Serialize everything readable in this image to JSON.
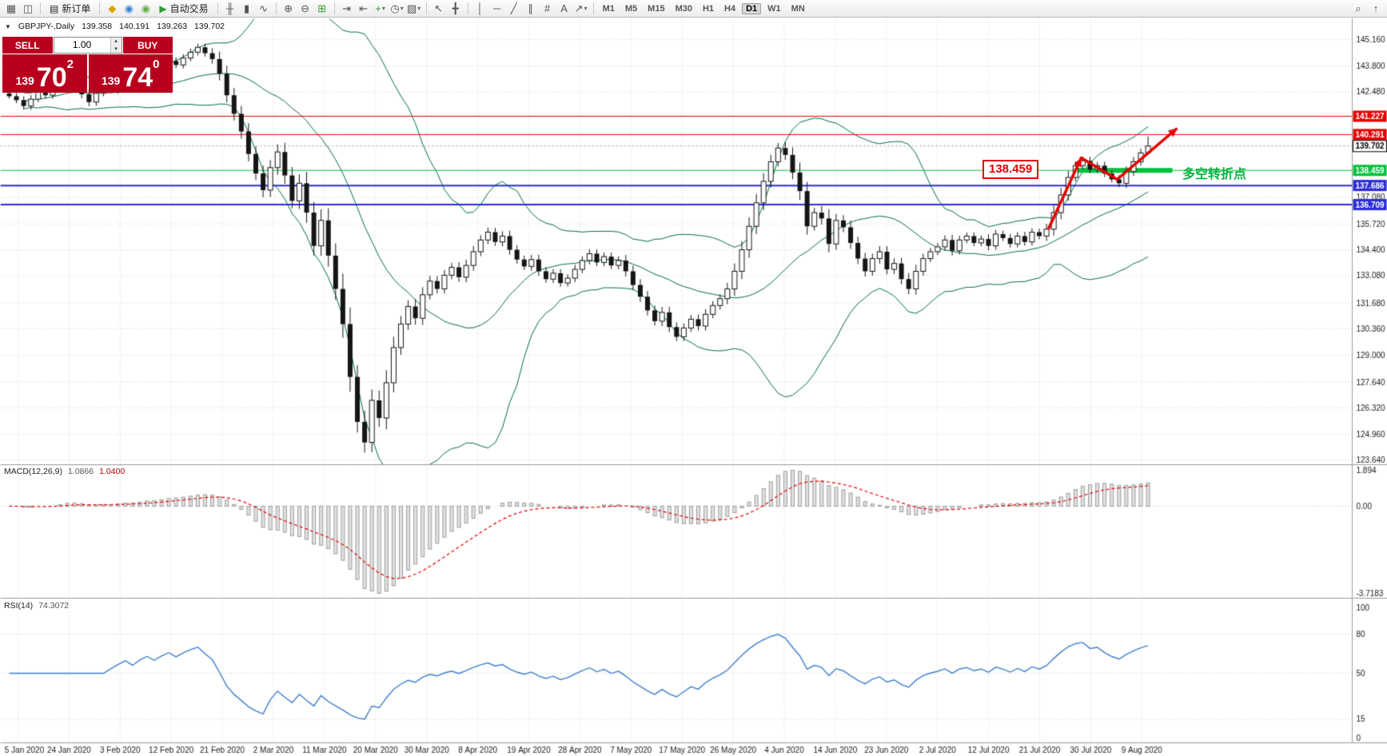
{
  "toolbar": {
    "items": [
      {
        "type": "icon",
        "name": "chart-window-icon",
        "glyph": "▦"
      },
      {
        "type": "icon",
        "name": "new-chart-icon",
        "glyph": "◫"
      },
      {
        "type": "sep"
      },
      {
        "type": "button",
        "name": "new-order-button",
        "glyph": "▤",
        "label": "新订单"
      },
      {
        "type": "sep"
      },
      {
        "type": "icon",
        "name": "metaeditor-icon",
        "glyph": "◆",
        "color": "#d9a400"
      },
      {
        "type": "icon",
        "name": "market-icon",
        "glyph": "◉",
        "color": "#3d7fd0"
      },
      {
        "type": "icon",
        "name": "community-icon",
        "glyph": "◉",
        "color": "#6aa84f"
      },
      {
        "type": "button",
        "name": "autotrading-button",
        "glyph": "▶",
        "label": "自动交易",
        "color": "#2f9e2f"
      },
      {
        "type": "sep"
      },
      {
        "type": "icon",
        "name": "bar-chart-type-icon",
        "glyph": "╫"
      },
      {
        "type": "icon",
        "name": "candlestick-chart-type-icon",
        "glyph": "▮"
      },
      {
        "type": "icon",
        "name": "line-chart-type-icon",
        "glyph": "∿"
      },
      {
        "type": "sep"
      },
      {
        "type": "icon",
        "name": "zoom-in-icon",
        "glyph": "⊕"
      },
      {
        "type": "icon",
        "name": "zoom-out-icon",
        "glyph": "⊖"
      },
      {
        "type": "icon",
        "name": "tile-windows-icon",
        "glyph": "⊞",
        "color": "#2f9e2f"
      },
      {
        "type": "sep"
      },
      {
        "type": "icon",
        "name": "auto-scroll-icon",
        "glyph": "⇥"
      },
      {
        "type": "icon",
        "name": "chart-shift-icon",
        "glyph": "⇤"
      },
      {
        "type": "icon",
        "name": "indicators-icon",
        "glyph": "+",
        "color": "#2f9e2f",
        "caret": true
      },
      {
        "type": "icon",
        "name": "periods-icon",
        "glyph": "◷",
        "caret": true
      },
      {
        "type": "icon",
        "name": "templates-icon",
        "glyph": "▨",
        "caret": true
      },
      {
        "type": "sep"
      },
      {
        "type": "icon",
        "name": "cursor-icon",
        "glyph": "↖"
      },
      {
        "type": "icon",
        "name": "crosshair-icon",
        "glyph": "╋"
      },
      {
        "type": "sep"
      },
      {
        "type": "icon",
        "name": "vertical-line-icon",
        "glyph": "│"
      },
      {
        "type": "icon",
        "name": "horizontal-line-icon",
        "glyph": "─"
      },
      {
        "type": "icon",
        "name": "trendline-icon",
        "glyph": "╱"
      },
      {
        "type": "icon",
        "name": "channel-icon",
        "glyph": "∥"
      },
      {
        "type": "icon",
        "name": "fibonacci-icon",
        "glyph": "#"
      },
      {
        "type": "icon",
        "name": "text-label-icon",
        "glyph": "A"
      },
      {
        "type": "icon",
        "name": "arrows-tool-icon",
        "glyph": "↗",
        "caret": true
      },
      {
        "type": "sep"
      }
    ],
    "timeframes": [
      {
        "label": "M1"
      },
      {
        "label": "M5"
      },
      {
        "label": "M15"
      },
      {
        "label": "M30"
      },
      {
        "label": "H1"
      },
      {
        "label": "H4"
      },
      {
        "label": "D1",
        "active": true
      },
      {
        "label": "W1"
      },
      {
        "label": "MN"
      }
    ],
    "right_items": [
      {
        "name": "search-icon",
        "glyph": "⌕"
      },
      {
        "name": "scroll-up-icon",
        "glyph": "↑"
      }
    ]
  },
  "icons": {
    "panel_toggle": "▼",
    "volume_up": "▴",
    "volume_down": "▾"
  },
  "symbol_line": {
    "symbol": "GBPJPY-,Daily",
    "open": "139.358",
    "high": "140.191",
    "low": "139.263",
    "close": "139.702"
  },
  "quote_panel": {
    "sell_label": "SELL",
    "buy_label": "BUY",
    "volume": "1.00",
    "sell_price": {
      "small": "139",
      "big": "70",
      "sup": "2"
    },
    "buy_price": {
      "small": "139",
      "big": "74",
      "sup": "0"
    },
    "color": "#b8001e"
  },
  "panes": {
    "macd_label": "MACD(12,26,9)",
    "macd_value1": "1.0866",
    "macd_value2": "1.0400",
    "rsi_label": "RSI(14)",
    "rsi_value": "74.3072"
  },
  "annotations": {
    "price_box": "138.459",
    "price_box_color": "#e60000",
    "pivot_text": "多空转折点",
    "pivot_color": "#00b43c"
  },
  "chart_data": {
    "type": "candlestick",
    "symbol": "GBPJPY-",
    "period": "Daily",
    "current_bar": {
      "open": 139.358,
      "high": 140.191,
      "low": 139.263,
      "close": 139.702
    },
    "closes": [
      142.25,
      142.05,
      141.75,
      142.1,
      142.45,
      142.3,
      142.65,
      142.95,
      143.2,
      142.8,
      142.35,
      141.95,
      142.4,
      142.7,
      142.55,
      142.85,
      143.15,
      142.9,
      143.3,
      143.6,
      143.4,
      143.75,
      144.05,
      143.85,
      144.2,
      144.5,
      144.75,
      144.45,
      144.15,
      143.4,
      142.3,
      141.35,
      140.45,
      139.3,
      138.3,
      137.45,
      138.6,
      139.4,
      138.2,
      136.9,
      137.8,
      136.3,
      134.6,
      135.9,
      134.1,
      132.4,
      130.6,
      127.9,
      125.6,
      124.55,
      126.7,
      125.8,
      127.6,
      129.4,
      130.6,
      131.5,
      130.9,
      132.1,
      132.8,
      132.4,
      133.1,
      133.5,
      133.0,
      133.6,
      134.3,
      134.9,
      135.3,
      134.8,
      135.1,
      134.4,
      133.9,
      133.55,
      133.9,
      133.3,
      132.9,
      133.2,
      132.7,
      132.95,
      133.4,
      133.85,
      134.2,
      133.75,
      134.05,
      133.6,
      133.85,
      133.3,
      132.6,
      132.0,
      131.3,
      130.75,
      131.2,
      130.45,
      129.95,
      130.4,
      130.85,
      130.5,
      131.1,
      131.55,
      131.9,
      132.4,
      133.3,
      134.4,
      135.6,
      136.8,
      137.9,
      138.9,
      139.6,
      139.25,
      138.35,
      137.4,
      135.6,
      136.3,
      136.0,
      134.7,
      135.9,
      135.55,
      134.75,
      133.95,
      133.3,
      133.95,
      134.3,
      133.4,
      133.7,
      132.9,
      132.4,
      133.3,
      133.95,
      134.3,
      134.55,
      134.9,
      134.35,
      134.9,
      135.1,
      134.75,
      134.95,
      134.6,
      135.2,
      135.0,
      134.7,
      135.1,
      134.8,
      135.3,
      135.1,
      135.45,
      136.3,
      137.2,
      138.1,
      138.7,
      138.95,
      138.5,
      138.7,
      138.3,
      138.0,
      137.8,
      138.4,
      138.9,
      139.35,
      139.7
    ],
    "x_labels": [
      "5 Jan 2020",
      "24 Jan 2020",
      "3 Feb 2020",
      "12 Feb 2020",
      "21 Feb 2020",
      "2 Mar 2020",
      "11 Mar 2020",
      "20 Mar 2020",
      "30 Mar 2020",
      "8 Apr 2020",
      "19 Apr 2020",
      "28 Apr 2020",
      "7 May 2020",
      "17 May 2020",
      "26 May 2020",
      "4 Jun 2020",
      "14 Jun 2020",
      "23 Jun 2020",
      "2 Jul 2020",
      "12 Jul 2020",
      "21 Jul 2020",
      "30 Jul 2020",
      "9 Aug 2020"
    ],
    "y_axis": {
      "top_value": 145.16,
      "bottom_value": 123.64,
      "grid_labels": [
        "145.160",
        "143.800",
        "142.480",
        "137.080",
        "135.720",
        "134.400",
        "133.080",
        "131.680",
        "130.360",
        "129.000",
        "127.640",
        "126.320",
        "124.960",
        "123.640"
      ],
      "levels": [
        {
          "value": 141.227,
          "label": "141.227",
          "color": "#e60000",
          "style": "solid",
          "width": 1
        },
        {
          "value": 140.291,
          "label": "140.291",
          "color": "#e60000",
          "style": "solid",
          "width": 1
        },
        {
          "value": 139.702,
          "label": "139.702",
          "color": "#9a9a9a",
          "style": "dotted",
          "width": 1,
          "label_style": "bid"
        },
        {
          "value": 138.459,
          "label": "138.459",
          "color": "#00c23c",
          "style": "solid",
          "width": 1,
          "highlight": true
        },
        {
          "value": 137.686,
          "label": "137.686",
          "color": "#2b2bd4",
          "style": "solid",
          "width": 2
        },
        {
          "value": 136.709,
          "label": "136.709",
          "color": "#2b2bd4",
          "style": "solid",
          "width": 2
        }
      ]
    },
    "indicators": {
      "bollinger": {
        "period": 20,
        "deviation": 2,
        "color": "#00703c"
      },
      "macd": {
        "fast": 12,
        "slow": 26,
        "signal": 9,
        "axis_labels": [
          "1.894",
          "0.00",
          "-3.7183"
        ],
        "hist_color": "#e2e2e2",
        "hist_border": "#9c9c9c",
        "signal_color": "#e60000"
      },
      "rsi": {
        "period": 14,
        "levels": [
          80,
          50,
          15
        ],
        "axis_labels": [
          "100",
          "80",
          "50",
          "15",
          "0"
        ],
        "color": "#3f7fca"
      }
    },
    "trend_arrows": {
      "color": "#e60000",
      "points": [
        [
          1311,
          286
        ],
        [
          1352,
          197
        ],
        [
          1397,
          224
        ],
        [
          1472,
          160
        ]
      ]
    }
  }
}
